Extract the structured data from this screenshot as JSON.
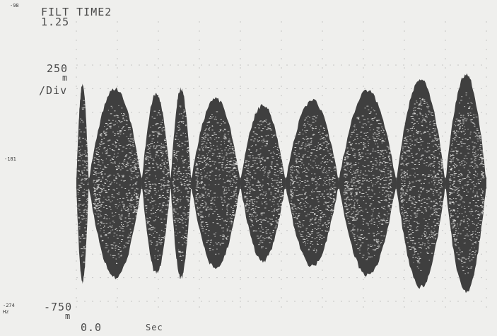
{
  "header": {
    "title": "FILT TIME2",
    "subtitle": "1.25"
  },
  "left_margin": {
    "top": "-98",
    "middle": "-181",
    "bottom": "-274",
    "bottom_unit": "Hz"
  },
  "axis": {
    "ytop": "250",
    "ytop_unit": "m",
    "ydiv": "/Div",
    "ybottom": "-750",
    "ybottom_unit": "m",
    "xstart": "0.0",
    "xunit": "Sec"
  },
  "colors": {
    "background": "#efefed",
    "trace": "#3f3f3f",
    "grid": "#c4c4c4"
  },
  "chart_data": {
    "type": "line",
    "title": "FILT TIME2",
    "ylabel": "",
    "xlabel": "Sec",
    "ylim": [
      -750,
      250
    ],
    "ydiv": 100,
    "baseline": -250,
    "x_divisions": 10,
    "envelope_series": [
      {
        "name": "",
        "lobes": [
          {
            "start": 0.0,
            "end": 0.03,
            "peak": 0.42
          },
          {
            "start": 0.03,
            "end": 0.16,
            "peak": 0.4
          },
          {
            "start": 0.16,
            "end": 0.23,
            "peak": 0.38
          },
          {
            "start": 0.23,
            "end": 0.28,
            "peak": 0.4
          },
          {
            "start": 0.28,
            "end": 0.4,
            "peak": 0.36
          },
          {
            "start": 0.4,
            "end": 0.51,
            "peak": 0.33
          },
          {
            "start": 0.51,
            "end": 0.64,
            "peak": 0.35
          },
          {
            "start": 0.64,
            "end": 0.78,
            "peak": 0.39
          },
          {
            "start": 0.78,
            "end": 0.9,
            "peak": 0.44
          },
          {
            "start": 0.9,
            "end": 1.0,
            "peak": 0.46
          }
        ]
      }
    ]
  }
}
